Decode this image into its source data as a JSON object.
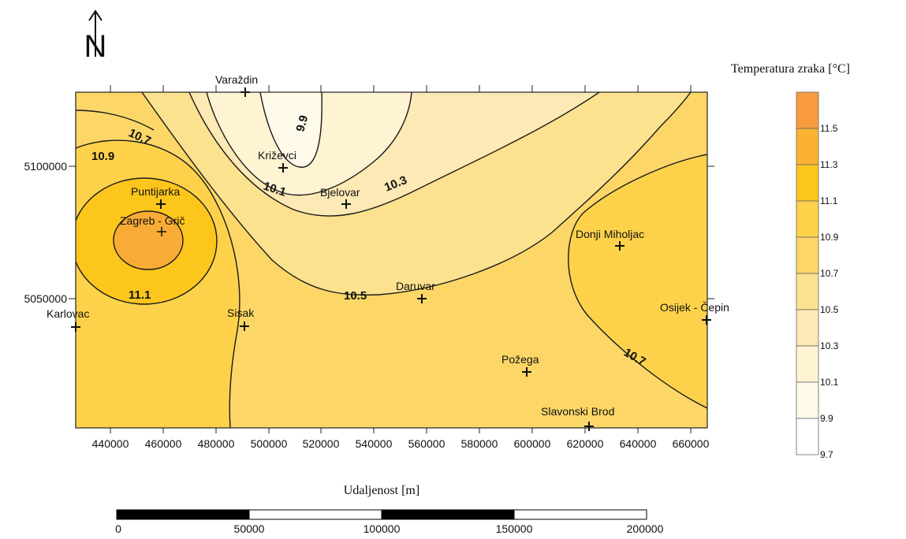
{
  "north_arrow": {
    "letter": "N"
  },
  "cities": [
    {
      "name": "Varaždin"
    },
    {
      "name": "Križevci"
    },
    {
      "name": "Bjelovar"
    },
    {
      "name": "Puntijarka"
    },
    {
      "name": "Zagreb - Grič"
    },
    {
      "name": "Donji Miholjac"
    },
    {
      "name": "Daruvar"
    },
    {
      "name": "Osijek - Čepin"
    },
    {
      "name": "Karlovac"
    },
    {
      "name": "Sisak"
    },
    {
      "name": "Požega"
    },
    {
      "name": "Slavonski Brod"
    }
  ],
  "contour_labels": [
    "9.9",
    "10.1",
    "10.3",
    "10.5",
    "10.7",
    "10.9",
    "11.1",
    "10.7"
  ],
  "x_ticks": [
    "440000",
    "460000",
    "480000",
    "500000",
    "520000",
    "540000",
    "560000",
    "580000",
    "600000",
    "620000",
    "640000",
    "660000"
  ],
  "y_ticks": [
    "5100000",
    "5050000"
  ],
  "legend": {
    "title": "Temperatura zraka [°C]",
    "classes": [
      {
        "label": "11.5",
        "color": "#f79b3e"
      },
      {
        "label": "11.3",
        "color": "#fbb233"
      },
      {
        "label": "11.1",
        "color": "#fdc61c"
      },
      {
        "label": "10.9",
        "color": "#fdd24a"
      },
      {
        "label": "10.7",
        "color": "#fcd768"
      },
      {
        "label": "10.5",
        "color": "#fce18f"
      },
      {
        "label": "10.3",
        "color": "#fde9b5"
      },
      {
        "label": "10.1",
        "color": "#fef3d3"
      },
      {
        "label": "9.9",
        "color": "#fffaea"
      },
      {
        "label": "9.7",
        "color": "#ffffff"
      }
    ]
  },
  "scale_bar": {
    "title": "Udaljenost [m]",
    "labels": [
      "0",
      "50000",
      "100000",
      "150000",
      "200000"
    ]
  }
}
